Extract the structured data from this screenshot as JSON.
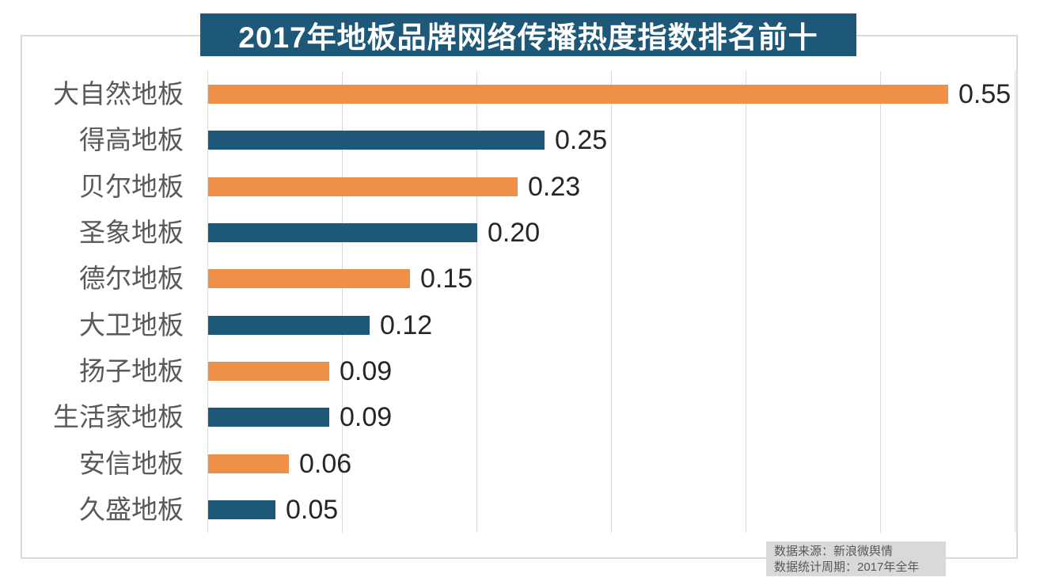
{
  "chart_data": {
    "type": "bar",
    "orientation": "horizontal",
    "title": "2017年地板品牌网络传播热度指数排名前十",
    "categories": [
      "大自然地板",
      "得高地板",
      "贝尔地板",
      "圣象地板",
      "德尔地板",
      "大卫地板",
      "扬子地板",
      "生活家地板",
      "安信地板",
      "久盛地板"
    ],
    "values": [
      0.55,
      0.25,
      0.23,
      0.2,
      0.15,
      0.12,
      0.09,
      0.09,
      0.06,
      0.05
    ],
    "value_labels": [
      "0.55",
      "0.25",
      "0.23",
      "0.20",
      "0.15",
      "0.12",
      "0.09",
      "0.09",
      "0.06",
      "0.05"
    ],
    "xlim": [
      0,
      0.6
    ],
    "grid_step": 0.1,
    "grid": true,
    "xlabel": "",
    "ylabel": "",
    "legend": "none",
    "source_note": [
      "数据来源：新浪微舆情",
      "数据统计周期：2017年全年"
    ]
  },
  "colors": {
    "bar_odd": "#ef9049",
    "bar_even": "#1d5878",
    "title_bg": "#1d5878",
    "title_text": "#ffffff",
    "gridline": "#d9d9d9",
    "frame_border": "#d9d9d9",
    "category_text": "#595959",
    "value_text": "#262626",
    "source_bg": "#d9d9d9",
    "source_text": "#595959"
  }
}
